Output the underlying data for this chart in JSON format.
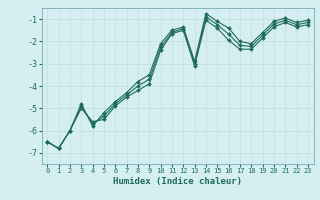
{
  "xlabel": "Humidex (Indice chaleur)",
  "background_color": "#d4eef2",
  "grid_color": "#c8dfe3",
  "line_color": "#1e6b5e",
  "xlim": [
    -0.5,
    23.5
  ],
  "ylim": [
    -7.5,
    -0.5
  ],
  "yticks": [
    -7,
    -6,
    -5,
    -4,
    -3,
    -2,
    -1
  ],
  "xticks": [
    0,
    1,
    2,
    3,
    4,
    5,
    6,
    7,
    8,
    9,
    10,
    11,
    12,
    13,
    14,
    15,
    16,
    17,
    18,
    19,
    20,
    21,
    22,
    23
  ],
  "series": [
    {
      "x": [
        0,
        1,
        2,
        3,
        4,
        5,
        6,
        7,
        8,
        9,
        10,
        11,
        12,
        13,
        14,
        15,
        16,
        17,
        18,
        19,
        20,
        21,
        22,
        23
      ],
      "y": [
        -6.5,
        -6.8,
        -6.0,
        -4.8,
        -5.8,
        -5.2,
        -4.7,
        -4.3,
        -3.8,
        -3.5,
        -2.1,
        -1.5,
        -1.35,
        -2.9,
        -0.75,
        -1.1,
        -1.4,
        -2.0,
        -2.1,
        -1.6,
        -1.1,
        -0.95,
        -1.15,
        -1.05
      ]
    },
    {
      "x": [
        0,
        1,
        2,
        3,
        4,
        5,
        6,
        7,
        8,
        9,
        10,
        11,
        12,
        13,
        14,
        15,
        16,
        17,
        18,
        19,
        20,
        21,
        22,
        23
      ],
      "y": [
        -6.5,
        -6.8,
        -6.0,
        -5.0,
        -5.6,
        -5.5,
        -4.9,
        -4.5,
        -4.2,
        -3.9,
        -2.4,
        -1.65,
        -1.5,
        -3.1,
        -1.05,
        -1.4,
        -1.95,
        -2.35,
        -2.35,
        -1.85,
        -1.35,
        -1.15,
        -1.35,
        -1.25
      ]
    },
    {
      "x": [
        0,
        1,
        2,
        3,
        4,
        5,
        6,
        7,
        8,
        9,
        10,
        11,
        12,
        13,
        14,
        15,
        16,
        17,
        18,
        19,
        20,
        21,
        22,
        23
      ],
      "y": [
        -6.5,
        -6.8,
        -6.0,
        -4.9,
        -5.7,
        -5.35,
        -4.8,
        -4.4,
        -4.0,
        -3.7,
        -2.25,
        -1.6,
        -1.42,
        -3.0,
        -0.9,
        -1.25,
        -1.67,
        -2.18,
        -2.22,
        -1.72,
        -1.22,
        -1.05,
        -1.25,
        -1.15
      ]
    }
  ]
}
